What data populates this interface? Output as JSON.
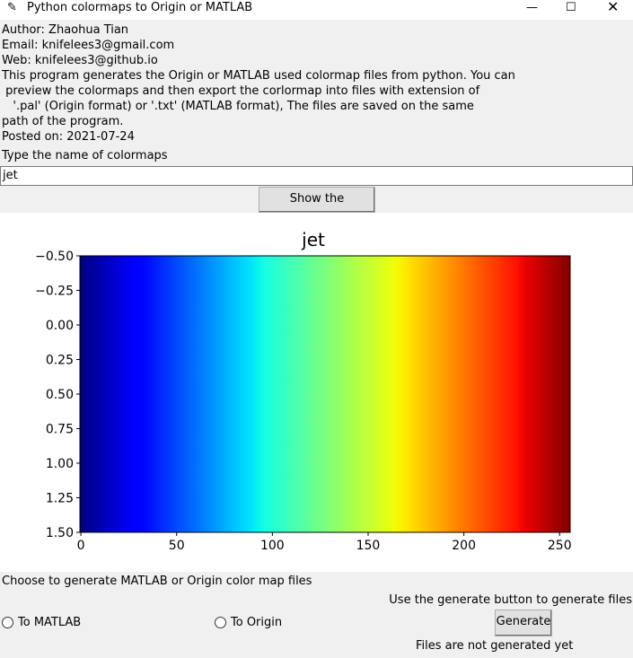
{
  "window": {
    "title": "Python colormaps to Origin or MATLAB"
  },
  "info": {
    "lines": [
      "Author: Zhaohua Tian",
      "Email: knifelees3@gmail.com",
      "Web: knifelees3@github.io",
      "This program generates the Origin or MATLAB used colormap files from python. You can",
      " preview the colormaps and then export the corlormap into files with extension of",
      "   '.pal' (Origin format) or '.txt' (MATLAB format), The files are saved on the same",
      "path of the program.",
      "Posted on: 2021-07-24"
    ]
  },
  "input": {
    "label": "Type the name of colormaps",
    "value": "jet"
  },
  "show_button": "Show the colormaps",
  "chart_data": {
    "type": "image",
    "title": "jet",
    "colormap": "jet",
    "xlim": [
      -0.5,
      255.5
    ],
    "xticks": [
      0,
      50,
      100,
      150,
      200,
      250
    ],
    "ylim": [
      1.5,
      -0.5
    ],
    "yticks": [
      {
        "value": -0.5,
        "label": "−0.50"
      },
      {
        "value": -0.25,
        "label": "−0.25"
      },
      {
        "value": 0,
        "label": "0.00"
      },
      {
        "value": 0.25,
        "label": "0.25"
      },
      {
        "value": 0.5,
        "label": "0.50"
      },
      {
        "value": 0.75,
        "label": "0.75"
      },
      {
        "value": 1,
        "label": "1.00"
      },
      {
        "value": 1.25,
        "label": "1.25"
      },
      {
        "value": 1.5,
        "label": "1.50"
      }
    ]
  },
  "export": {
    "prompt": "Choose to generate MATLAB or Origin color map files",
    "options": [
      "To MATLAB",
      "To Origin"
    ],
    "hint": "Use the generate button to generate files",
    "button": "Generate",
    "status": "Files are not generated yet"
  }
}
